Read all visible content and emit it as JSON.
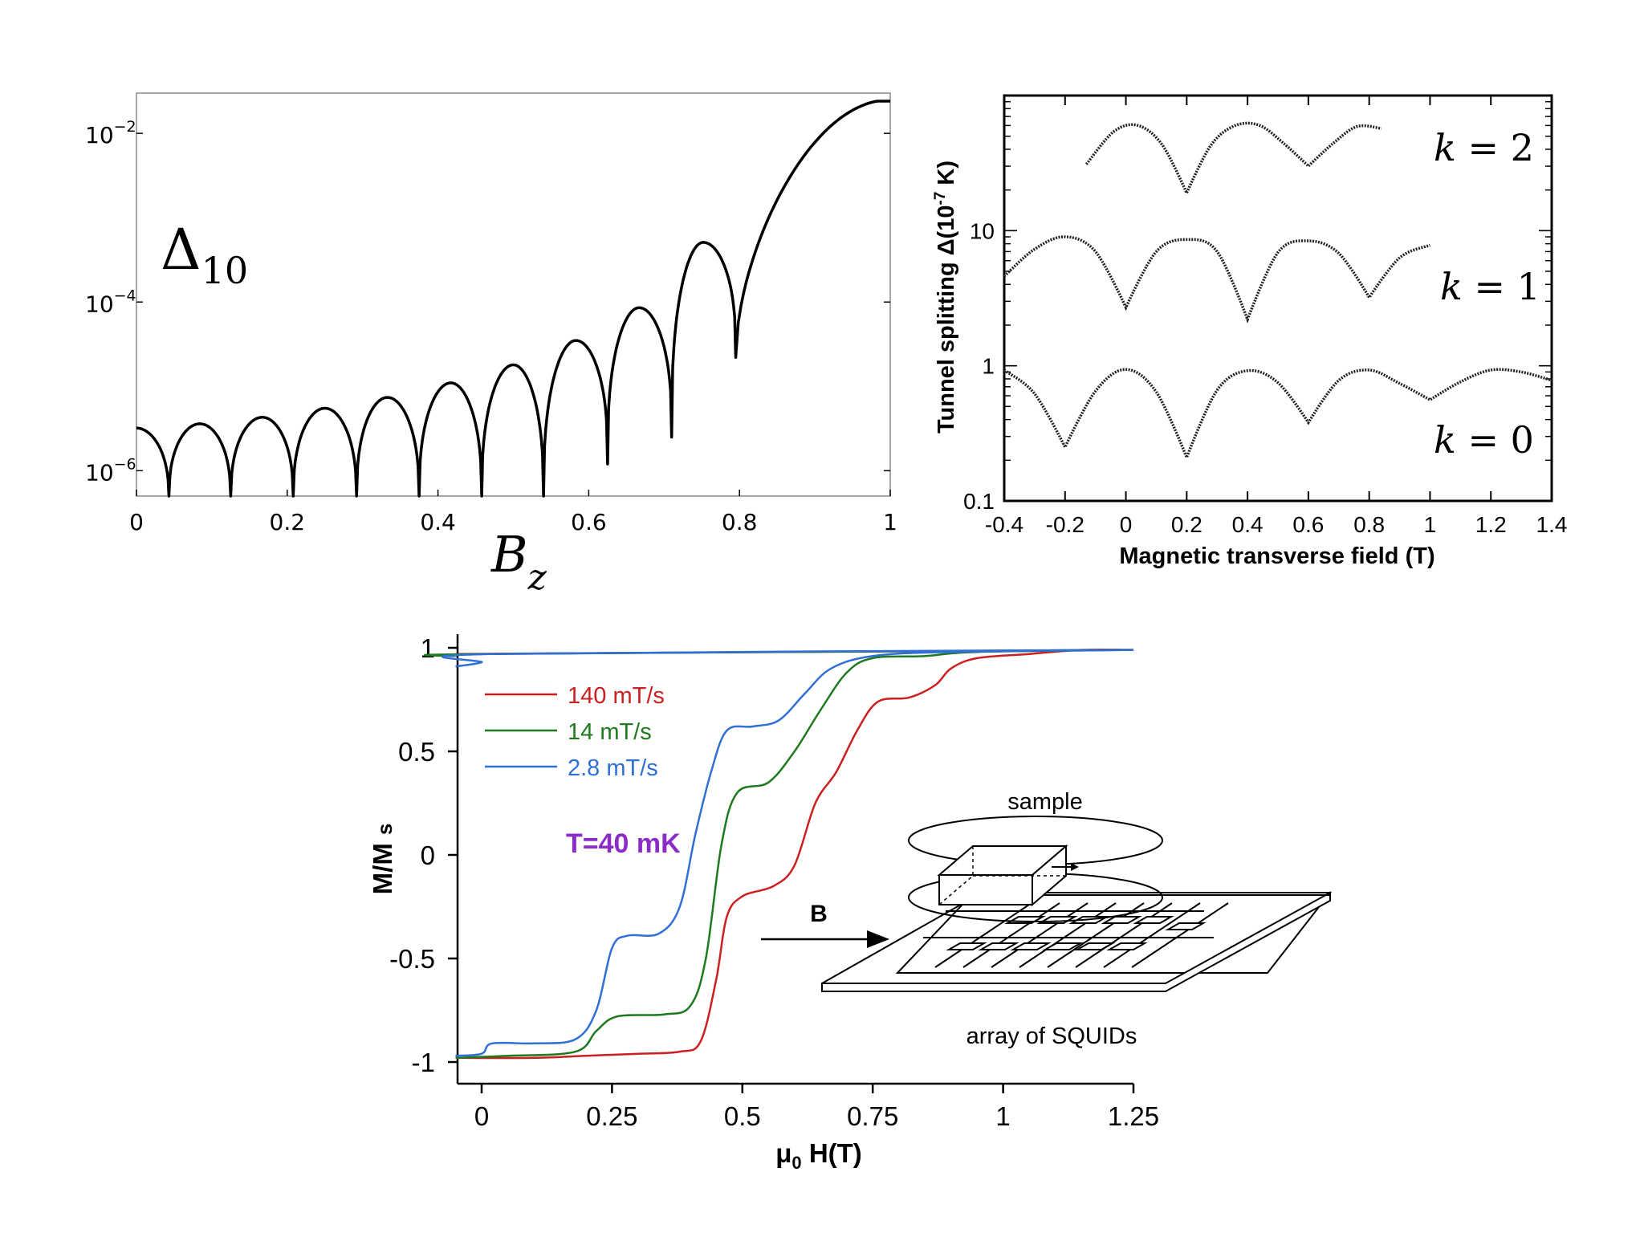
{
  "chart_data": [
    {
      "type": "line",
      "title": "",
      "ylabel": "Δ10",
      "ylabel_main": "Δ",
      "ylabel_sub": "10",
      "xlabel": "B",
      "xlabel_sub": "z",
      "xlim": [
        0,
        1
      ],
      "ylim": [
        5e-07,
        0.03
      ],
      "yscale": "log",
      "x_ticks": [
        "0",
        "0.2",
        "0.4",
        "0.6",
        "0.8",
        "1"
      ],
      "y_ticks": [
        {
          "base": "10",
          "exp": "−2"
        },
        {
          "base": "10",
          "exp": "−4"
        },
        {
          "base": "10",
          "exp": "−6"
        }
      ],
      "series": [
        {
          "zeros": [
            0.043,
            0.125,
            0.208,
            0.292,
            0.375,
            0.458,
            0.54,
            0.625,
            0.71,
            0.795
          ],
          "peaks": [
            {
              "x": 0.0,
              "y": 3.2e-06
            },
            {
              "x": 0.084,
              "y": 3.6e-06
            },
            {
              "x": 0.167,
              "y": 4.3e-06
            },
            {
              "x": 0.25,
              "y": 5.5e-06
            },
            {
              "x": 0.333,
              "y": 7.4e-06
            },
            {
              "x": 0.417,
              "y": 1.1e-05
            },
            {
              "x": 0.5,
              "y": 1.8e-05
            },
            {
              "x": 0.583,
              "y": 3.5e-05
            },
            {
              "x": 0.667,
              "y": 8.56e-05
            },
            {
              "x": 0.752,
              "y": 0.00051
            },
            {
              "x": 1.0,
              "y": 0.025
            }
          ],
          "dip_floors": [
            4e-07,
            4e-07,
            4e-07,
            4e-07,
            4e-07,
            4e-07,
            4e-07,
            1.2e-06,
            2.5e-06,
            2.2e-05
          ]
        }
      ]
    },
    {
      "type": "line",
      "title": "",
      "xlabel": "Magnetic transverse field (T)",
      "ylabel": "Tunnel splitting Δ (10⁻⁷ K)",
      "ylabel_main": "Tunnel splitting Δ",
      "ylabel_paren": "(10",
      "ylabel_exp": "-7",
      "ylabel_unit": " K)",
      "xlim": [
        -0.4,
        1.4
      ],
      "ylim": [
        0.1,
        100
      ],
      "yscale": "log",
      "x_ticks": [
        "-0.4",
        "-0.2",
        "0",
        "0.2",
        "0.4",
        "0.6",
        "0.8",
        "1",
        "1.2",
        "1.4"
      ],
      "y_ticks": [
        "0.1",
        "1",
        "10"
      ],
      "series": [
        {
          "name": "k = 2",
          "label_k": "k",
          "label_eq": " = 2",
          "points": [
            [
              -0.13,
              31
            ],
            [
              -0.04,
              54
            ],
            [
              0.04,
              60
            ],
            [
              0.12,
              43
            ],
            [
              0.2,
              19
            ],
            [
              0.28,
              43
            ],
            [
              0.36,
              60
            ],
            [
              0.44,
              60
            ],
            [
              0.52,
              44
            ],
            [
              0.6,
              30
            ],
            [
              0.68,
              44
            ],
            [
              0.76,
              59
            ],
            [
              0.84,
              57
            ]
          ]
        },
        {
          "name": "k = 1",
          "label_k": "k",
          "label_eq": " = 1",
          "points": [
            [
              -0.4,
              4.6
            ],
            [
              -0.3,
              7.3
            ],
            [
              -0.2,
              9
            ],
            [
              -0.1,
              7.0
            ],
            [
              0.0,
              2.7
            ],
            [
              0.1,
              7.0
            ],
            [
              0.2,
              8.6
            ],
            [
              0.3,
              7.0
            ],
            [
              0.4,
              2.2
            ],
            [
              0.5,
              6.9
            ],
            [
              0.6,
              8.4
            ],
            [
              0.7,
              6.8
            ],
            [
              0.8,
              3.2
            ],
            [
              0.9,
              6.3
            ],
            [
              1.0,
              7.8
            ]
          ]
        },
        {
          "name": "k = 0",
          "label_k": "k",
          "label_eq": " = 0",
          "points": [
            [
              -0.4,
              0.93
            ],
            [
              -0.3,
              0.62
            ],
            [
              -0.2,
              0.25
            ],
            [
              -0.1,
              0.65
            ],
            [
              0.0,
              0.94
            ],
            [
              0.1,
              0.64
            ],
            [
              0.2,
              0.21
            ],
            [
              0.3,
              0.66
            ],
            [
              0.4,
              0.92
            ],
            [
              0.5,
              0.75
            ],
            [
              0.6,
              0.38
            ],
            [
              0.7,
              0.78
            ],
            [
              0.8,
              0.93
            ],
            [
              0.9,
              0.74
            ],
            [
              1.0,
              0.56
            ],
            [
              1.1,
              0.76
            ],
            [
              1.2,
              0.93
            ],
            [
              1.3,
              0.9
            ],
            [
              1.4,
              0.78
            ]
          ]
        }
      ]
    },
    {
      "type": "line",
      "title": "",
      "xlabel": "μ0 H(T)",
      "xlabel_mu": "μ",
      "xlabel_sub": "0",
      "xlabel_rest": " H(T)",
      "ylabel": "M/M s",
      "ylabel_text": "M/M",
      "ylabel_sub": "s",
      "xlim": [
        -0.05,
        1.25
      ],
      "ylim": [
        -1.05,
        1.05
      ],
      "x_ticks": [
        "0",
        "0.25",
        "0.5",
        "0.75",
        "1",
        "1.25"
      ],
      "y_ticks": [
        "1",
        "0.5",
        "0",
        "-0.5",
        "-1"
      ],
      "annotation": "T=40 mK",
      "inset_labels": {
        "sample": "sample",
        "field": "B",
        "array": "array of SQUIDs"
      },
      "series": [
        {
          "name": "140 mT/s",
          "color": "#cc1f1f",
          "points": [
            [
              -0.05,
              -0.98
            ],
            [
              0.1,
              -0.98
            ],
            [
              0.2,
              -0.97
            ],
            [
              0.3,
              -0.96
            ],
            [
              0.38,
              -0.95
            ],
            [
              0.42,
              -0.9
            ],
            [
              0.45,
              -0.6
            ],
            [
              0.47,
              -0.3
            ],
            [
              0.5,
              -0.2
            ],
            [
              0.56,
              -0.15
            ],
            [
              0.6,
              -0.05
            ],
            [
              0.64,
              0.25
            ],
            [
              0.68,
              0.4
            ],
            [
              0.72,
              0.6
            ],
            [
              0.76,
              0.74
            ],
            [
              0.82,
              0.76
            ],
            [
              0.87,
              0.82
            ],
            [
              0.9,
              0.9
            ],
            [
              0.95,
              0.95
            ],
            [
              1.05,
              0.97
            ],
            [
              1.15,
              0.99
            ],
            [
              1.25,
              0.99
            ]
          ],
          "return_points": [
            [
              -0.05,
              0.97
            ],
            [
              1.25,
              0.99
            ]
          ]
        },
        {
          "name": "14 mT/s",
          "color": "#1f7a1f",
          "points": [
            [
              -0.05,
              -0.98
            ],
            [
              0.05,
              -0.97
            ],
            [
              0.18,
              -0.95
            ],
            [
              0.22,
              -0.85
            ],
            [
              0.26,
              -0.78
            ],
            [
              0.35,
              -0.77
            ],
            [
              0.4,
              -0.73
            ],
            [
              0.43,
              -0.5
            ],
            [
              0.46,
              0.05
            ],
            [
              0.49,
              0.3
            ],
            [
              0.55,
              0.35
            ],
            [
              0.6,
              0.5
            ],
            [
              0.65,
              0.7
            ],
            [
              0.7,
              0.88
            ],
            [
              0.75,
              0.95
            ],
            [
              0.85,
              0.96
            ],
            [
              0.95,
              0.98
            ],
            [
              1.25,
              0.99
            ]
          ],
          "return_points": [
            [
              -0.05,
              0.96
            ],
            [
              0.0,
              0.97
            ],
            [
              1.25,
              0.99
            ]
          ]
        },
        {
          "name": "2.8 mT/s",
          "color": "#2f6fd6",
          "points": [
            [
              -0.05,
              -0.97
            ],
            [
              0.0,
              -0.96
            ],
            [
              0.02,
              -0.91
            ],
            [
              0.1,
              -0.91
            ],
            [
              0.18,
              -0.89
            ],
            [
              0.22,
              -0.75
            ],
            [
              0.25,
              -0.45
            ],
            [
              0.28,
              -0.39
            ],
            [
              0.34,
              -0.38
            ],
            [
              0.38,
              -0.25
            ],
            [
              0.41,
              0.1
            ],
            [
              0.44,
              0.4
            ],
            [
              0.47,
              0.6
            ],
            [
              0.52,
              0.62
            ],
            [
              0.57,
              0.65
            ],
            [
              0.62,
              0.78
            ],
            [
              0.67,
              0.9
            ],
            [
              0.75,
              0.96
            ],
            [
              0.9,
              0.98
            ],
            [
              1.25,
              0.99
            ]
          ],
          "return_points": [
            [
              -0.05,
              0.91
            ],
            [
              0.0,
              0.93
            ],
            [
              0.02,
              0.97
            ],
            [
              1.25,
              0.99
            ]
          ]
        }
      ]
    }
  ]
}
